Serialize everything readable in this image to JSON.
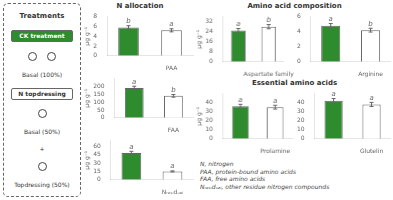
{
  "chart_data": [
    {
      "type": "diagram",
      "title": "Treatments",
      "color": "#2e8b2e",
      "annotations": [
        "CK treatment",
        "Basal (100%)",
        "N topdressing",
        "Basal (50%)",
        "+",
        "Topdressing (50%)"
      ]
    },
    {
      "type": "bar",
      "title": "N allocation",
      "categories": [
        null,
        "PAA"
      ],
      "values": [
        5.8,
        5.2
      ],
      "errors": [
        0.348,
        0.312
      ],
      "annotations": [
        "b",
        "a"
      ],
      "colors": [
        "#2e8b2e",
        "#ffffff"
      ],
      "ylabel": "μg g⁻¹",
      "ylim": [
        0,
        8
      ],
      "yticks": [
        0,
        2,
        4,
        6,
        8
      ],
      "grid": false
    },
    {
      "type": "bar",
      "categories": [
        null,
        "FAA"
      ],
      "values": [
        190,
        140
      ],
      "errors": [
        11.4,
        8.4
      ],
      "annotations": [
        "a",
        "b"
      ],
      "colors": [
        "#2e8b2e",
        "#ffffff"
      ],
      "ylabel": "μg g⁻¹",
      "ylim": [
        0,
        250
      ],
      "yticks": [
        0,
        50,
        100,
        150,
        200
      ],
      "grid": false
    },
    {
      "type": "bar",
      "categories": [
        null,
        "Nᵣₑₛᵢdᵤₐₗ"
      ],
      "values": [
        48,
        15
      ],
      "errors": [
        2.88,
        0.9
      ],
      "annotations": [
        "a",
        "a"
      ],
      "colors": [
        "#2e8b2e",
        "#ffffff"
      ],
      "ylabel": "μg g⁻¹",
      "ylim": [
        0,
        70
      ],
      "yticks": [
        0,
        15,
        30,
        45,
        60
      ],
      "grid": false
    },
    {
      "type": "bar",
      "title": "Amino acid composition",
      "categories": [
        null,
        "Aspartate family"
      ],
      "values": [
        25,
        28
      ],
      "errors": [
        1.5,
        1.68
      ],
      "annotations": [
        "a",
        "b"
      ],
      "colors": [
        "#2e8b2e",
        "#ffffff"
      ],
      "ylabel": "μg g⁻¹",
      "ylim": [
        0,
        36
      ],
      "yticks": [
        0,
        8,
        16,
        24,
        32
      ],
      "grid": false
    },
    {
      "type": "bar",
      "categories": [
        null,
        "Arginine"
      ],
      "values": [
        4.8,
        4.2
      ],
      "errors": [
        0.288,
        0.252
      ],
      "annotations": [
        "a",
        "b"
      ],
      "colors": [
        "#2e8b2e",
        "#ffffff"
      ],
      "ylim": [
        0,
        6
      ],
      "yticks": [
        0,
        2,
        4,
        6
      ],
      "grid": false
    },
    {
      "type": "bar",
      "title": "Essential amino acids",
      "categories": [
        null,
        "Prolamine"
      ],
      "values": [
        36,
        35
      ],
      "errors": [
        2.16,
        2.1
      ],
      "annotations": [
        "a",
        "a"
      ],
      "colors": [
        "#2e8b2e",
        "#ffffff"
      ],
      "ylabel": "μg g⁻¹",
      "ylim": [
        0,
        50
      ],
      "yticks": [
        0,
        10,
        20,
        30,
        40
      ],
      "grid": false
    },
    {
      "type": "bar",
      "categories": [
        null,
        "Glutelin"
      ],
      "values": [
        42,
        38
      ],
      "errors": [
        2.52,
        2.28
      ],
      "annotations": [
        "a",
        "a"
      ],
      "colors": [
        "#2e8b2e",
        "#ffffff"
      ],
      "ylim": [
        0,
        50
      ],
      "yticks": [
        0,
        10,
        20,
        30,
        40
      ],
      "grid": false
    },
    {
      "type": "text",
      "annotations": [
        "N, nitrogen",
        "PAA, protein-bound amino acids",
        "FAA, free amino acids",
        "Nᵣₑₛᵢdᵤₐₗ, other residue nitrogen compounds"
      ]
    }
  ]
}
